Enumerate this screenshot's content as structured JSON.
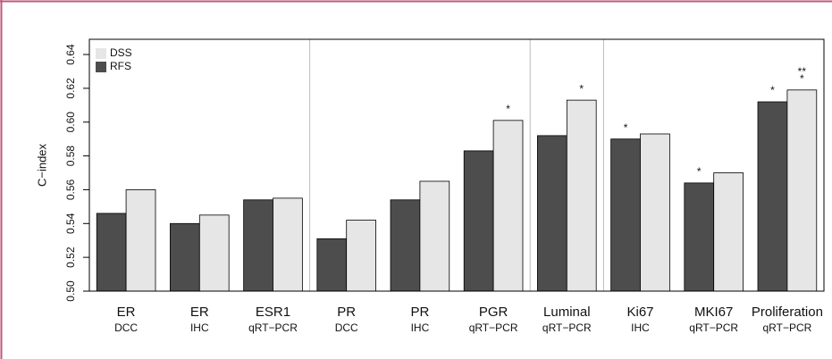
{
  "chart_data": {
    "type": "bar",
    "y_label": "C−index",
    "categories": [
      "ER",
      "ER",
      "ESR1",
      "PR",
      "PR",
      "PGR",
      "Luminal",
      "Ki67",
      "MKI67",
      "Proliferation"
    ],
    "sublabels": [
      "DCC",
      "IHC",
      "qRT−PCR",
      "DCC",
      "IHC",
      "qRT−PCR",
      "qRT−PCR",
      "IHC",
      "qRT−PCR",
      "qRT−PCR"
    ],
    "series": [
      {
        "name": "RFS",
        "color": "#4d4d4d",
        "values": [
          0.546,
          0.54,
          0.554,
          0.531,
          0.554,
          0.583,
          0.592,
          0.59,
          0.564,
          0.612
        ],
        "annotations": [
          null,
          null,
          null,
          null,
          null,
          null,
          null,
          [
            "*"
          ],
          [
            "*"
          ],
          [
            "*"
          ]
        ]
      },
      {
        "name": "DSS",
        "color": "#e6e6e6",
        "values": [
          0.56,
          0.545,
          0.555,
          0.542,
          0.565,
          0.601,
          0.613,
          0.593,
          0.57,
          0.619
        ],
        "annotations": [
          null,
          null,
          null,
          null,
          null,
          [
            "*"
          ],
          [
            "*"
          ],
          null,
          null,
          [
            "**",
            "*"
          ]
        ]
      }
    ],
    "ylim": [
      0.5,
      0.649
    ],
    "yticks": [
      {
        "value": 0.5,
        "label": "0.50"
      },
      0.52,
      0.54,
      0.56,
      0.58,
      {
        "value": 0.6,
        "label": "0.60"
      },
      0.62,
      0.64
    ],
    "legend": "top-left"
  }
}
